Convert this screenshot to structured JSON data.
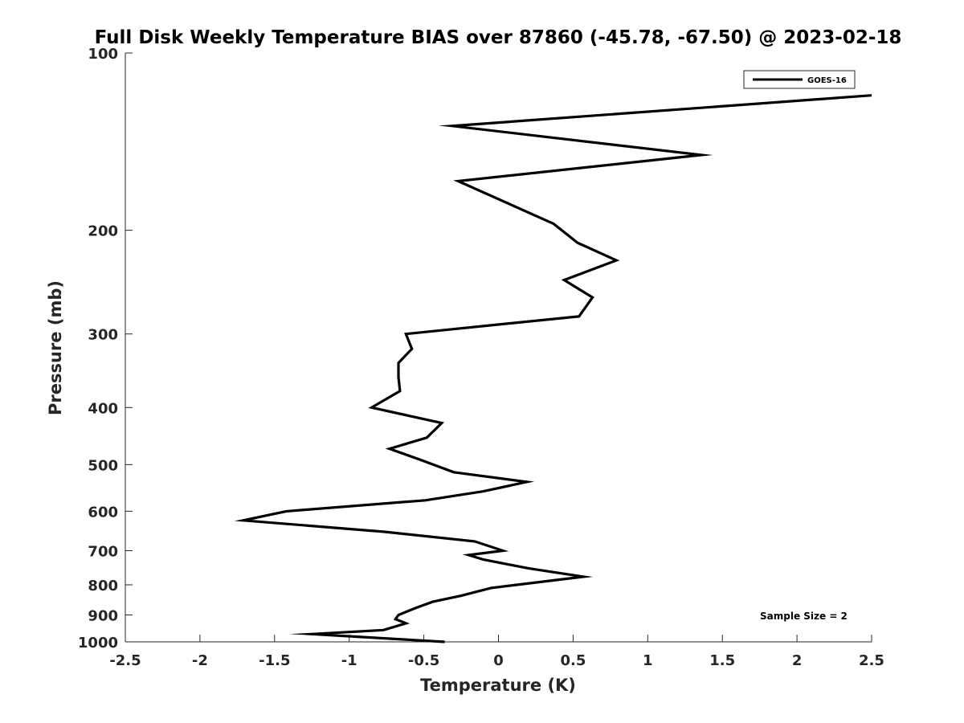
{
  "chart_data": {
    "type": "line",
    "title": "Full Disk Weekly Temperature BIAS over 87860 (-45.78, -67.50) @ 2023-02-18",
    "xlabel": "Temperature (K)",
    "ylabel": "Pressure (mb)",
    "xlim": [
      -2.5,
      2.5
    ],
    "ylim": [
      100,
      1000
    ],
    "yscale": "log",
    "yreversed": true,
    "grid": false,
    "xticks": [
      -2.5,
      -2,
      -1.5,
      -1,
      -0.5,
      0,
      0.5,
      1,
      1.5,
      2,
      2.5
    ],
    "xtick_labels": [
      "-2.5",
      "-2",
      "-1.5",
      "-1",
      "-0.5",
      "0",
      "0.5",
      "1",
      "1.5",
      "2",
      "2.5"
    ],
    "yticks": [
      100,
      200,
      300,
      400,
      500,
      600,
      700,
      800,
      900,
      1000
    ],
    "ytick_labels": [
      "100",
      "200",
      "300",
      "400",
      "500",
      "600",
      "700",
      "800",
      "900",
      "1000"
    ],
    "legend_position": "top-right",
    "series": [
      {
        "name": "GOES-16",
        "color": "#000000",
        "points": [
          [
            2.5,
            118
          ],
          [
            -0.31,
            133
          ],
          [
            1.36,
            149
          ],
          [
            -0.27,
            165
          ],
          [
            0.37,
            195
          ],
          [
            0.53,
            210
          ],
          [
            0.79,
            225
          ],
          [
            0.44,
            243
          ],
          [
            0.63,
            260
          ],
          [
            0.54,
            280
          ],
          [
            -0.62,
            300
          ],
          [
            -0.58,
            318
          ],
          [
            -0.67,
            336
          ],
          [
            -0.67,
            355
          ],
          [
            -0.66,
            375
          ],
          [
            -0.85,
            400
          ],
          [
            -0.38,
            425
          ],
          [
            -0.48,
            450
          ],
          [
            -0.73,
            470
          ],
          [
            -0.53,
            490
          ],
          [
            -0.3,
            515
          ],
          [
            0.19,
            535
          ],
          [
            -0.1,
            555
          ],
          [
            -0.49,
            575
          ],
          [
            -1.42,
            600
          ],
          [
            -1.71,
            622
          ],
          [
            -0.77,
            650
          ],
          [
            -0.16,
            675
          ],
          [
            0.03,
            700
          ],
          [
            -0.2,
            712
          ],
          [
            -0.1,
            725
          ],
          [
            0.2,
            750
          ],
          [
            0.57,
            775
          ],
          [
            -0.05,
            810
          ],
          [
            -0.25,
            835
          ],
          [
            -0.44,
            855
          ],
          [
            -0.55,
            875
          ],
          [
            -0.67,
            900
          ],
          [
            -0.69,
            915
          ],
          [
            -0.62,
            930
          ],
          [
            -0.77,
            955
          ],
          [
            -1.25,
            970
          ],
          [
            -0.36,
            1000
          ]
        ]
      }
    ],
    "annotations": [
      "Sample Size = 2"
    ]
  }
}
